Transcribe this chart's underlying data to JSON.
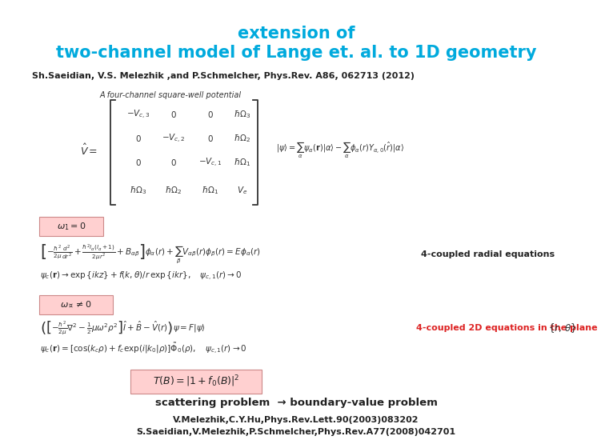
{
  "title_line1": "extension of",
  "title_line2": "two-channel model of Lange et. al. to 1D geometry",
  "title_color": "#00AADD",
  "subtitle": "Sh.Saeidian, V.S. Melezhik ,and P.Schmelcher, Phys.Rev. A86, 062713 (2012)",
  "subtitle_color": "#222222",
  "bg_color": "#ffffff",
  "label_4coupled_radial": "4-coupled radial equations",
  "label_4coupled_2d": "4-coupled 2D equations in the plane",
  "label_scattering": "scattering problem  → boundary-value problem",
  "ref1": "V.Melezhik,C.Y.Hu,Phys.Rev.Lett.90(2003)083202",
  "ref2": "S.Saeidian,V.Melezhik,P.Schmelcher,Phys.Rev.A77(2008)042701"
}
